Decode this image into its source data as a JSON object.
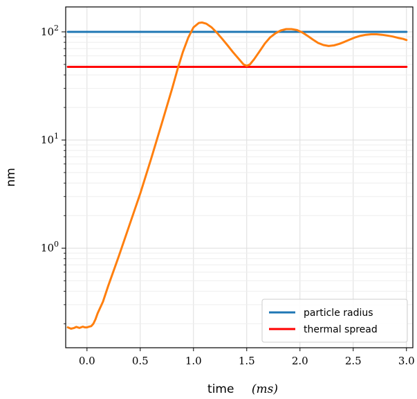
{
  "chart_data": {
    "type": "line",
    "title": "",
    "xlabel": "time",
    "xlabel_unit": "(ms)",
    "ylabel": "nm",
    "xlim": [
      -0.2,
      3.06
    ],
    "ylim": [
      0.12,
      170
    ],
    "yscale": "log",
    "grid": true,
    "legend_position": "bottom-right",
    "x_ticks": [
      0.0,
      0.5,
      1.0,
      1.5,
      2.0,
      2.5,
      3.0
    ],
    "x_tick_labels": [
      "0.0",
      "0.5",
      "1.0",
      "1.5",
      "2.0",
      "2.5",
      "3.0"
    ],
    "y_ticks": [
      1,
      10,
      100
    ],
    "y_tick_labels": [
      {
        "base": "10",
        "exp": "0"
      },
      {
        "base": "10",
        "exp": "1"
      },
      {
        "base": "10",
        "exp": "2"
      }
    ],
    "series": [
      {
        "name": "particle radius",
        "color": "#1f77b4",
        "x": [
          -0.18,
          3.0
        ],
        "y": [
          100,
          100
        ]
      },
      {
        "name": "thermal spread",
        "color": "#ff0000",
        "x": [
          -0.18,
          3.0
        ],
        "y": [
          47.5,
          47.5
        ]
      },
      {
        "name": "",
        "color": "#ff7f0e",
        "x": [
          -0.18,
          -0.15,
          -0.12,
          -0.1,
          -0.07,
          -0.04,
          -0.02,
          0.0,
          0.02,
          0.04,
          0.06,
          0.08,
          0.1,
          0.15,
          0.2,
          0.3,
          0.4,
          0.5,
          0.6,
          0.7,
          0.8,
          0.85,
          0.9,
          0.95,
          1.0,
          1.05,
          1.08,
          1.12,
          1.17,
          1.22,
          1.27,
          1.32,
          1.37,
          1.42,
          1.47,
          1.5,
          1.53,
          1.57,
          1.62,
          1.67,
          1.72,
          1.77,
          1.82,
          1.87,
          1.92,
          1.97,
          2.02,
          2.07,
          2.12,
          2.17,
          2.22,
          2.27,
          2.32,
          2.37,
          2.42,
          2.47,
          2.52,
          2.57,
          2.62,
          2.67,
          2.72,
          2.77,
          2.82,
          2.87,
          2.92,
          2.97,
          3.0
        ],
        "y": [
          0.185,
          0.18,
          0.183,
          0.187,
          0.183,
          0.188,
          0.185,
          0.185,
          0.188,
          0.19,
          0.2,
          0.22,
          0.25,
          0.32,
          0.45,
          0.85,
          1.65,
          3.2,
          6.6,
          14,
          30,
          45,
          65,
          88,
          110,
          121,
          122,
          119,
          110,
          98,
          86,
          75,
          65,
          57,
          50,
          48.5,
          50,
          56,
          66,
          78,
          89,
          97,
          103,
          106,
          106,
          104,
          99,
          92,
          85,
          79,
          75.5,
          74,
          75,
          77.5,
          81,
          85,
          89,
          92,
          94,
          95,
          95,
          94,
          92.5,
          90.5,
          88,
          86,
          84
        ]
      }
    ]
  }
}
